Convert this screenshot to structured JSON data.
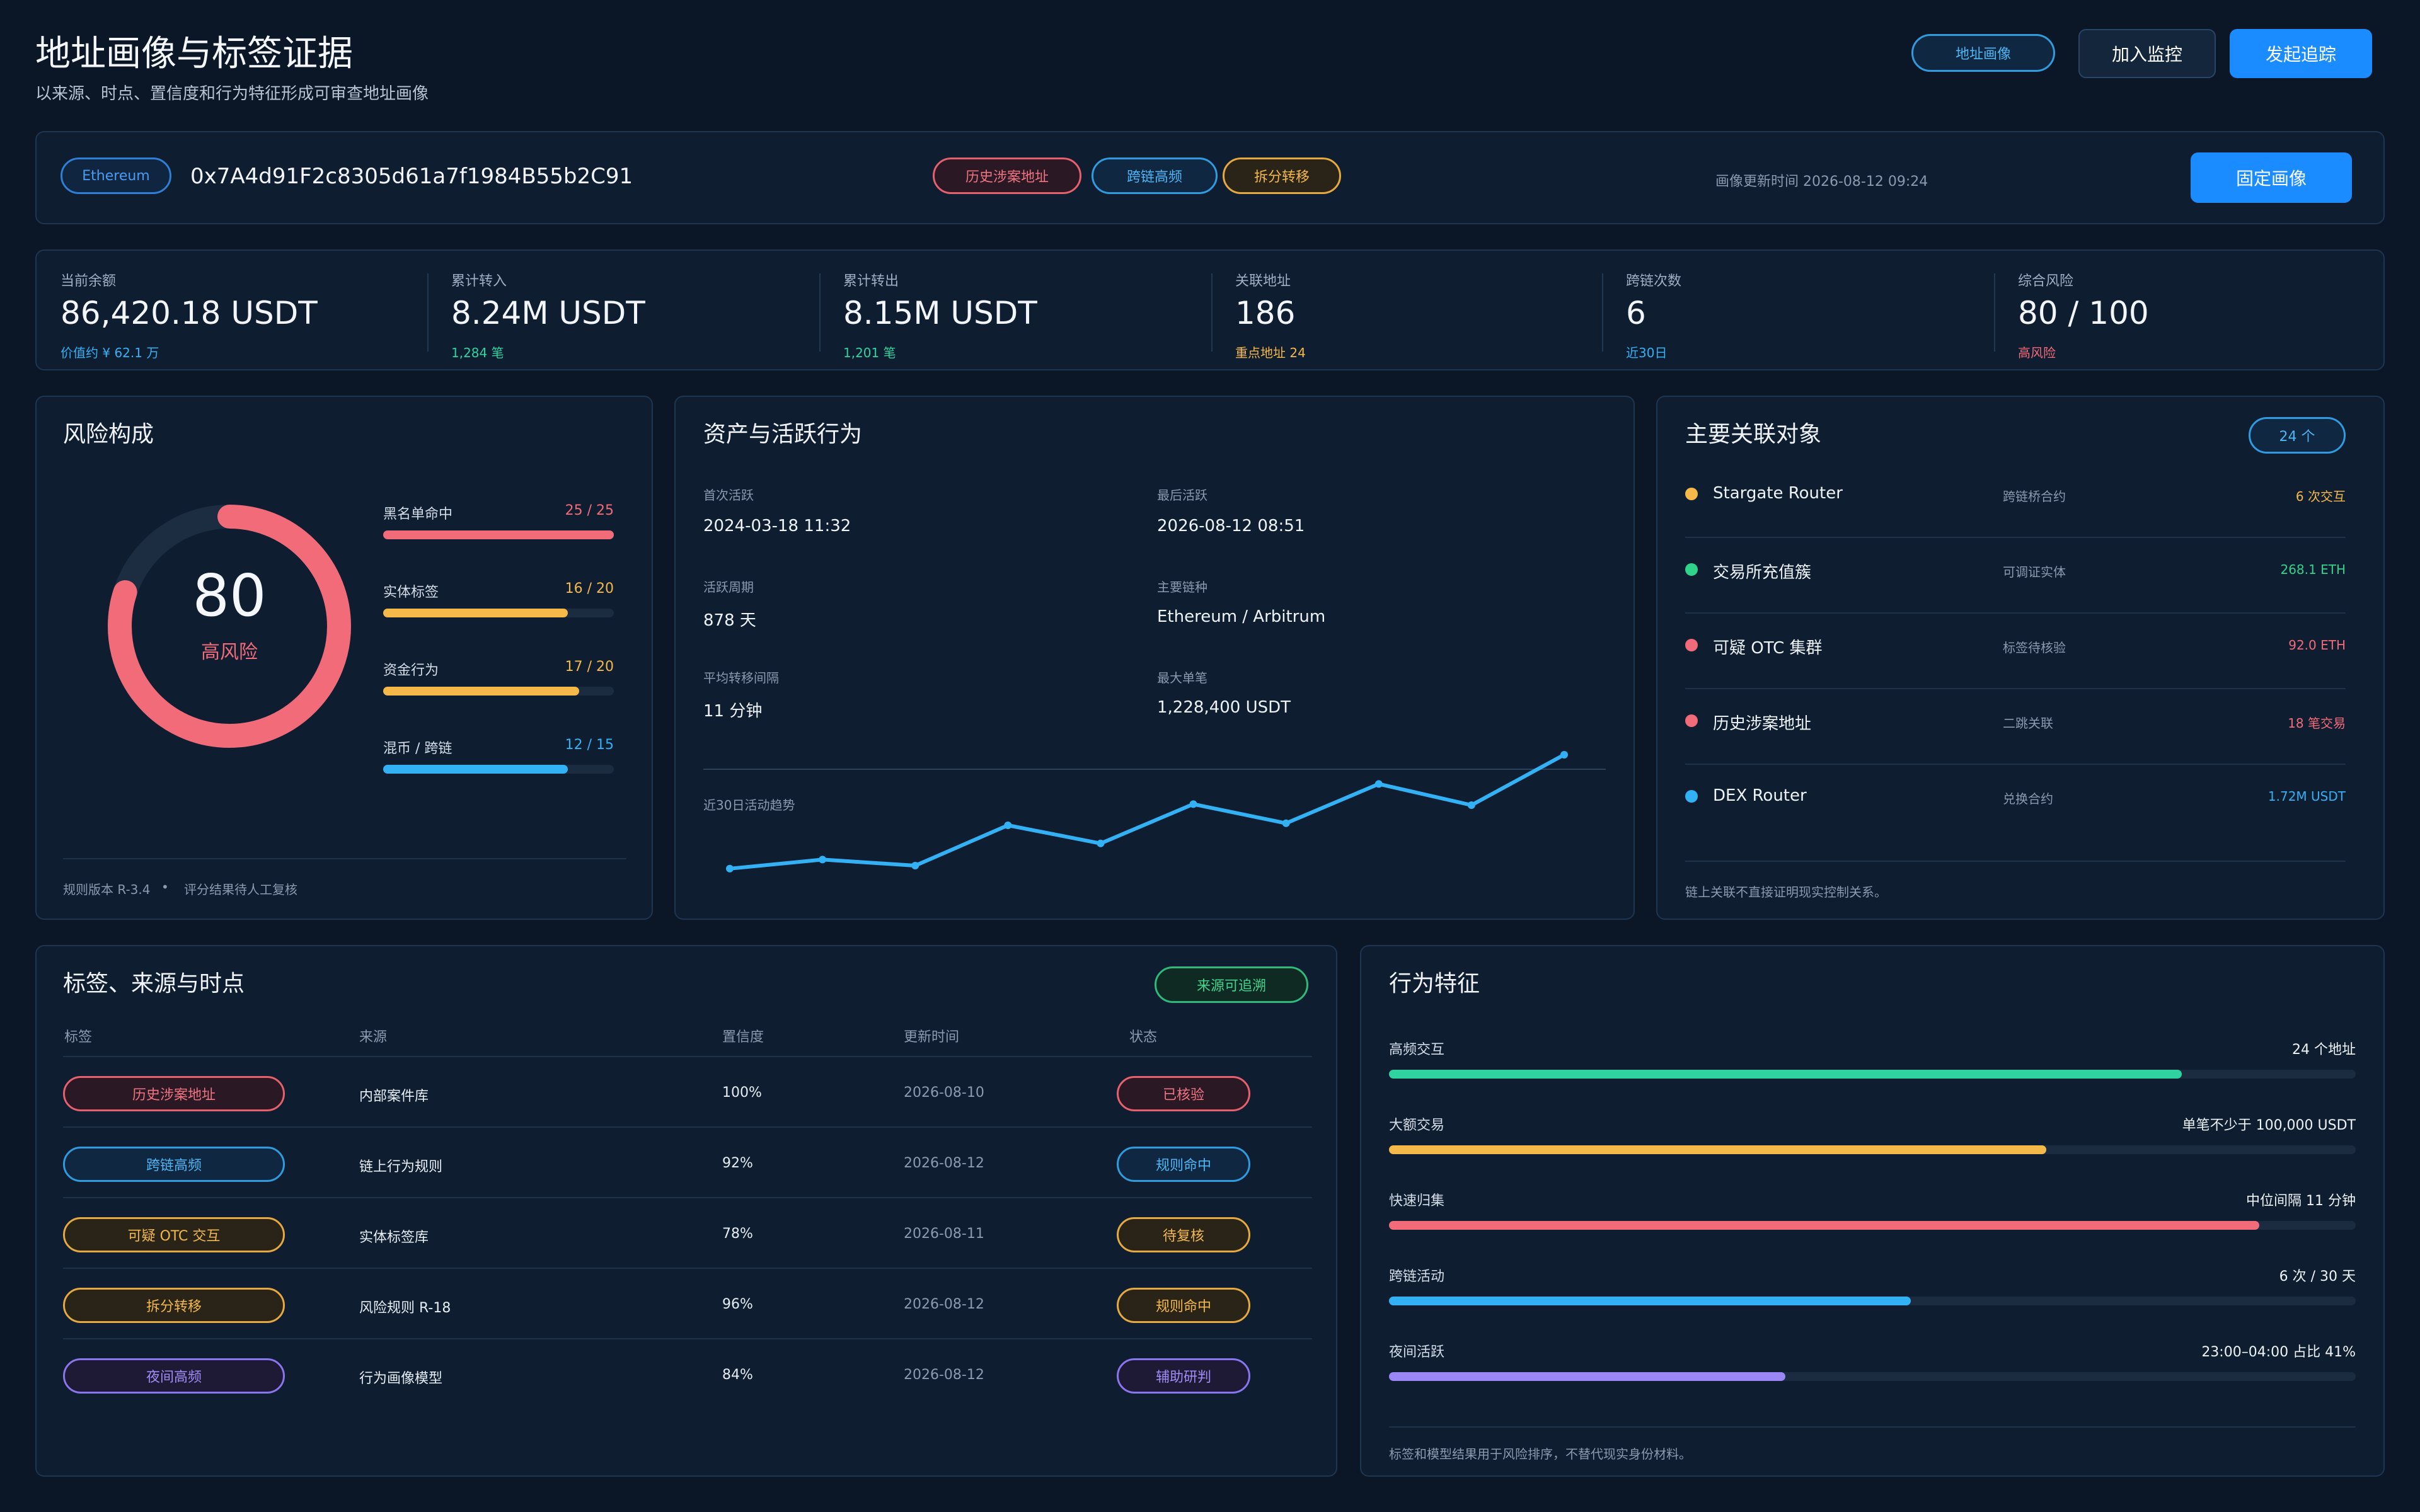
{
  "header": {
    "title": "地址画像与标签证据",
    "subtitle": "以来源、时点、置信度和行为特征形成可审查地址画像",
    "badge": "地址画像",
    "monitor_btn": "加入监控",
    "trace_btn": "发起追踪"
  },
  "address_bar": {
    "chain": "Ethereum",
    "address": "0x7A4d91F2c8305d61a7f1984B55b2C91",
    "tags": [
      "历史涉案地址",
      "跨链高频",
      "拆分转移"
    ],
    "updated": "画像更新时间 2026-08-12 09:24",
    "pin_btn": "固定画像"
  },
  "stats": [
    {
      "label": "当前余额",
      "value": "86,420.18 USDT",
      "sub": "价值约 ¥ 62.1 万",
      "sub_color": "#33b1f5"
    },
    {
      "label": "累计转入",
      "value": "8.24M USDT",
      "sub": "1,284 笔",
      "sub_color": "#2fd3a0"
    },
    {
      "label": "累计转出",
      "value": "8.15M USDT",
      "sub": "1,201 笔",
      "sub_color": "#2fd3a0"
    },
    {
      "label": "关联地址",
      "value": "186",
      "sub": "重点地址 24",
      "sub_color": "#f5b94a"
    },
    {
      "label": "跨链次数",
      "value": "6",
      "sub": "近30日",
      "sub_color": "#33b1f5"
    },
    {
      "label": "综合风险",
      "value": "80 / 100",
      "sub": "高风险",
      "sub_color": "#f26b78"
    }
  ],
  "risk": {
    "title": "风险构成",
    "score": "80",
    "score_value": 80,
    "score_max": 100,
    "level": "高风险",
    "items": [
      {
        "label": "黑名单命中",
        "value": "25 / 25",
        "ratio": 1.0,
        "color": "#f26b78"
      },
      {
        "label": "实体标签",
        "value": "16 / 20",
        "ratio": 0.8,
        "color": "#f5b94a"
      },
      {
        "label": "资金行为",
        "value": "17 / 20",
        "ratio": 0.85,
        "color": "#f5b94a"
      },
      {
        "label": "混币 / 跨链",
        "value": "12 / 15",
        "ratio": 0.8,
        "color": "#33b1f5"
      }
    ],
    "footer_a": "规则版本 R-3.4",
    "footer_dot": "•",
    "footer_b": "评分结果待人工复核"
  },
  "activity": {
    "title": "资产与活跃行为",
    "fields": [
      {
        "label": "首次活跃",
        "value": "2024-03-18 11:32"
      },
      {
        "label": "最后活跃",
        "value": "2026-08-12 08:51"
      },
      {
        "label": "活跃周期",
        "value": "878 天"
      },
      {
        "label": "主要链种",
        "value": "Ethereum / Arbitrum"
      },
      {
        "label": "平均转移间隔",
        "value": "11 分钟"
      },
      {
        "label": "最大单笔",
        "value": "1,228,400 USDT"
      }
    ],
    "trend_label": "近30日活动趋势"
  },
  "chart_data": {
    "type": "line",
    "title": "近30日活动趋势",
    "series": [
      {
        "values": [
          2,
          11,
          5,
          45,
          27,
          66,
          47,
          86,
          65,
          115
        ]
      }
    ],
    "ylim": [
      0,
      120
    ],
    "grid": false,
    "color": "#33b1f5"
  },
  "related": {
    "title": "主要关联对象",
    "count": "24 个",
    "items": [
      {
        "name": "Stargate Router",
        "type": "跨链桥合约",
        "value": "6 次交互",
        "color": "#f5b94a"
      },
      {
        "name": "交易所充值簇",
        "type": "可调证实体",
        "value": "268.1 ETH",
        "color": "#2fd38a"
      },
      {
        "name": "可疑 OTC 集群",
        "type": "标签待核验",
        "value": "92.0 ETH",
        "color": "#f26b78"
      },
      {
        "name": "历史涉案地址",
        "type": "二跳关联",
        "value": "18 笔交易",
        "color": "#f26b78"
      },
      {
        "name": "DEX Router",
        "type": "兑换合约",
        "value": "1.72M USDT",
        "color": "#33b1f5"
      }
    ],
    "footer": "链上关联不直接证明现实控制关系。"
  },
  "tags_table": {
    "title": "标签、来源与时点",
    "badge": "来源可追溯",
    "columns": [
      "标签",
      "来源",
      "置信度",
      "更新时间",
      "状态"
    ],
    "rows": [
      {
        "tag": "历史涉案地址",
        "source": "内部案件库",
        "conf": "100%",
        "date": "2026-08-10",
        "status": "已核验",
        "color": "#f26b78"
      },
      {
        "tag": "跨链高频",
        "source": "链上行为规则",
        "conf": "92%",
        "date": "2026-08-12",
        "status": "规则命中",
        "color": "#33b1f5"
      },
      {
        "tag": "可疑 OTC 交互",
        "source": "实体标签库",
        "conf": "78%",
        "date": "2026-08-11",
        "status": "待复核",
        "color": "#f5b94a"
      },
      {
        "tag": "拆分转移",
        "source": "风险规则 R-18",
        "conf": "96%",
        "date": "2026-08-12",
        "status": "规则命中",
        "color": "#f5b94a"
      },
      {
        "tag": "夜间高频",
        "source": "行为画像模型",
        "conf": "84%",
        "date": "2026-08-12",
        "status": "辅助研判",
        "color": "#9a86f5"
      }
    ]
  },
  "behavior": {
    "title": "行为特征",
    "items": [
      {
        "label": "高频交互",
        "value": "24 个地址",
        "ratio": 0.82,
        "color": "#2fd3a0"
      },
      {
        "label": "大额交易",
        "value": "单笔不少于 100,000 USDT",
        "ratio": 0.68,
        "color": "#f5b94a"
      },
      {
        "label": "快速归集",
        "value": "中位间隔 11 分钟",
        "ratio": 0.9,
        "color": "#f26b78"
      },
      {
        "label": "跨链活动",
        "value": "6 次 / 30 天",
        "ratio": 0.54,
        "color": "#33b1f5"
      },
      {
        "label": "夜间活跃",
        "value": "23:00–04:00 占比 41%",
        "ratio": 0.41,
        "color": "#9a86f5"
      }
    ],
    "footer": "标签和模型结果用于风险排序，不替代现实身份材料。"
  }
}
